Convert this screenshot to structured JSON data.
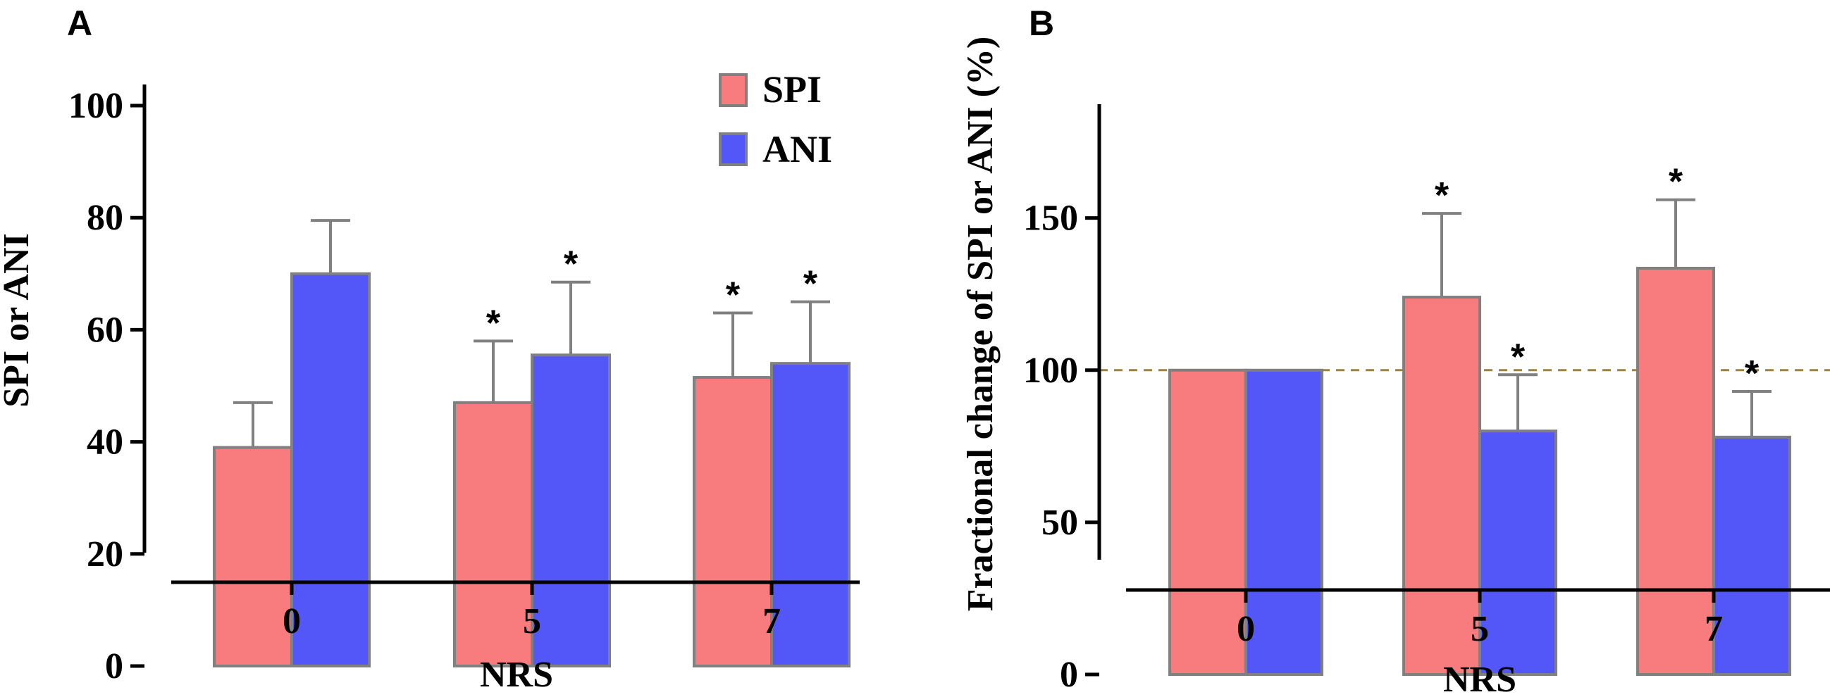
{
  "figure": {
    "panel_letters": [
      "A",
      "B"
    ]
  },
  "colors": {
    "SPI": "#F87B7D",
    "ANI": "#5457F8",
    "bar_edge": "#808080",
    "reference_line": "#9C8240"
  },
  "chart_data": [
    {
      "panel": "A",
      "type": "bar",
      "title": "",
      "xlabel": "NRS",
      "ylabel": "SPI or ANI",
      "categories": [
        "0",
        "5",
        "7"
      ],
      "ylim": [
        0,
        100
      ],
      "yticks": [
        0,
        20,
        40,
        60,
        80,
        100
      ],
      "yticklabels": [
        "0",
        "20",
        "40",
        "60",
        "80",
        "100"
      ],
      "legend": {
        "position": "top-right",
        "entries": [
          "SPI",
          "ANI"
        ]
      },
      "series": [
        {
          "name": "SPI",
          "values": [
            39,
            47,
            51.5
          ],
          "errors": [
            8,
            11,
            11.5
          ],
          "significant": [
            "",
            "*",
            "*"
          ]
        },
        {
          "name": "ANI",
          "values": [
            70,
            55.5,
            54
          ],
          "errors": [
            9.5,
            13,
            11
          ],
          "significant": [
            "",
            "*",
            "*"
          ]
        }
      ]
    },
    {
      "panel": "B",
      "type": "bar",
      "title": "",
      "xlabel": "NRS",
      "ylabel": "Fractional change of SPI or ANI (%)",
      "categories": [
        "0",
        "5",
        "7"
      ],
      "ylim": [
        0,
        180
      ],
      "yticks": [
        0,
        50,
        100,
        150
      ],
      "yticklabels": [
        "0",
        "50",
        "100",
        "150"
      ],
      "reference_line": 100,
      "series": [
        {
          "name": "SPI",
          "values": [
            100,
            124,
            133.5
          ],
          "errors": [
            0,
            27.5,
            22.5
          ],
          "significant": [
            "",
            "*",
            "*"
          ]
        },
        {
          "name": "ANI",
          "values": [
            100,
            80,
            78
          ],
          "errors": [
            0,
            18.5,
            15
          ],
          "significant": [
            "",
            "*",
            "*"
          ]
        }
      ]
    }
  ]
}
